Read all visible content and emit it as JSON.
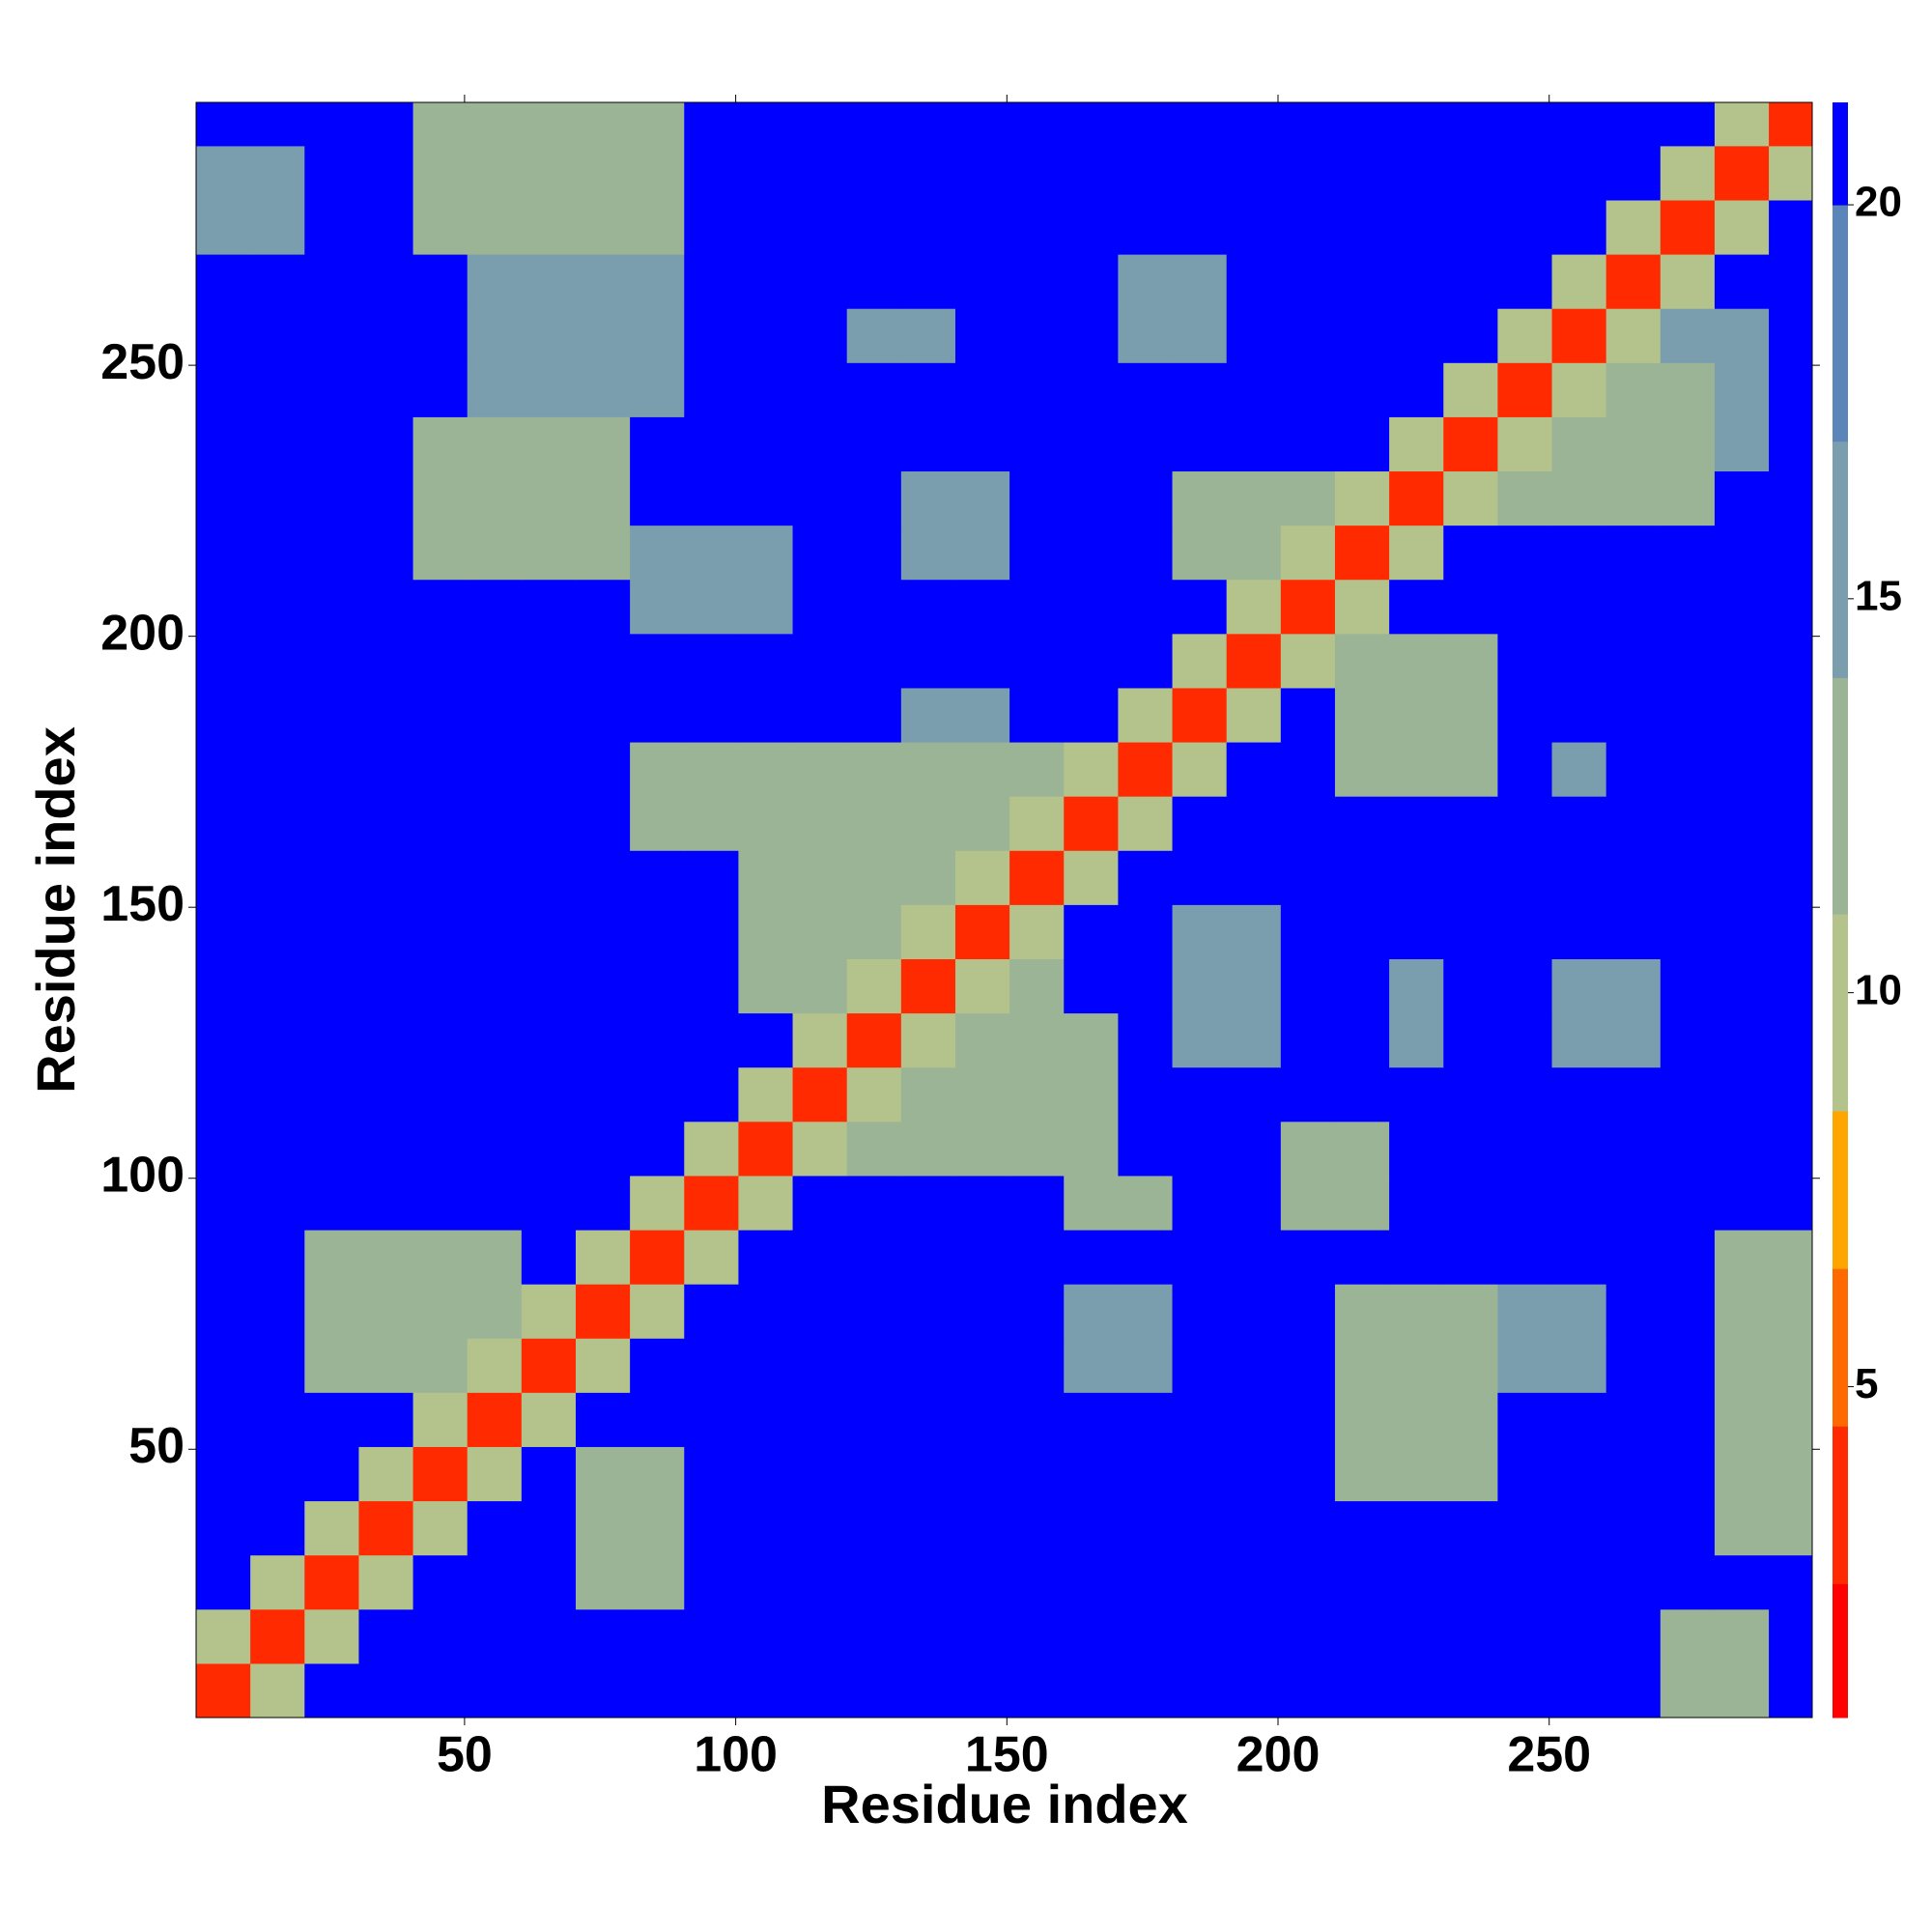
{
  "chart_data": {
    "type": "heatmap",
    "x_label": "Residue index",
    "y_label": "Residue index",
    "x_bins": [
      0.5,
      10.5,
      20.5,
      30.5,
      40.5,
      50.5,
      60.5,
      70.5,
      80.5,
      90.5,
      100.5,
      110.5,
      120.5,
      130.5,
      140.5,
      150.5,
      160.5,
      170.5,
      180.5,
      190.5,
      200.5,
      210.5,
      220.5,
      230.5,
      240.5,
      250.5,
      260.5,
      270.5,
      280.5,
      290.5,
      298.5
    ],
    "y_bins": [
      0.5,
      10.5,
      20.5,
      30.5,
      40.5,
      50.5,
      60.5,
      70.5,
      80.5,
      90.5,
      100.5,
      110.5,
      120.5,
      130.5,
      140.5,
      150.5,
      160.5,
      170.5,
      180.5,
      190.5,
      200.5,
      210.5,
      220.5,
      230.5,
      240.5,
      250.5,
      260.5,
      270.5,
      280.5,
      290.5,
      298.5
    ],
    "xlim": [
      0.5,
      298.5
    ],
    "ylim": [
      0.5,
      298.5
    ],
    "xticks": [
      50,
      100,
      150,
      200,
      250
    ],
    "yticks": [
      50,
      100,
      150,
      200,
      250
    ],
    "clim": [
      0.8,
      21.3
    ],
    "cticks": [
      5,
      10,
      15,
      20
    ],
    "colormap": [
      {
        "value": 2.5,
        "color": "#ff0000"
      },
      {
        "value": 4.5,
        "color": "#ff2a00"
      },
      {
        "value": 6.5,
        "color": "#ff6a00"
      },
      {
        "value": 8.5,
        "color": "#ffa500"
      },
      {
        "value": 11,
        "color": "#b4c38c"
      },
      {
        "value": 14,
        "color": "#9cb496"
      },
      {
        "value": 17,
        "color": "#7a9eae"
      },
      {
        "value": 20,
        "color": "#5b84b8"
      },
      {
        "value": 21.3,
        "color": "#0000ff"
      }
    ],
    "z": [
      [
        3,
        11,
        21,
        21,
        21,
        21,
        21,
        21,
        21,
        21,
        21,
        21,
        21,
        21,
        21,
        21,
        21,
        21,
        21,
        21,
        21,
        21,
        21,
        21,
        21,
        21,
        21,
        14,
        14,
        21
      ],
      [
        11,
        3,
        11,
        21,
        21,
        21,
        21,
        21,
        21,
        21,
        21,
        21,
        21,
        21,
        21,
        21,
        21,
        21,
        21,
        21,
        21,
        21,
        21,
        21,
        21,
        21,
        21,
        14,
        14,
        21
      ],
      [
        21,
        11,
        3,
        11,
        21,
        21,
        21,
        14,
        14,
        21,
        21,
        21,
        21,
        21,
        21,
        21,
        21,
        21,
        21,
        21,
        21,
        21,
        21,
        21,
        21,
        21,
        21,
        21,
        21,
        21
      ],
      [
        21,
        21,
        11,
        3,
        11,
        21,
        21,
        14,
        14,
        21,
        21,
        21,
        21,
        21,
        21,
        21,
        21,
        21,
        21,
        21,
        21,
        21,
        21,
        21,
        21,
        21,
        21,
        21,
        14,
        14
      ],
      [
        21,
        21,
        21,
        11,
        3,
        11,
        21,
        14,
        14,
        21,
        21,
        21,
        21,
        21,
        21,
        21,
        21,
        21,
        21,
        21,
        21,
        14,
        14,
        14,
        21,
        21,
        21,
        21,
        14,
        14
      ],
      [
        21,
        21,
        21,
        21,
        11,
        3,
        11,
        21,
        21,
        21,
        21,
        21,
        21,
        21,
        21,
        21,
        21,
        21,
        21,
        21,
        21,
        14,
        14,
        14,
        21,
        21,
        21,
        21,
        14,
        14
      ],
      [
        21,
        21,
        14,
        14,
        14,
        11,
        3,
        11,
        21,
        21,
        21,
        21,
        21,
        21,
        21,
        21,
        17,
        17,
        21,
        21,
        21,
        14,
        14,
        14,
        15,
        15,
        21,
        21,
        14,
        14
      ],
      [
        21,
        21,
        14,
        14,
        14,
        14,
        11,
        3,
        11,
        21,
        21,
        21,
        21,
        21,
        21,
        21,
        17,
        17,
        21,
        21,
        21,
        14,
        14,
        14,
        15,
        15,
        21,
        21,
        14,
        14
      ],
      [
        21,
        21,
        14,
        14,
        14,
        14,
        21,
        11,
        3,
        11,
        21,
        21,
        21,
        21,
        21,
        21,
        21,
        21,
        21,
        21,
        21,
        21,
        21,
        21,
        21,
        21,
        21,
        21,
        14,
        14
      ],
      [
        21,
        21,
        21,
        21,
        21,
        21,
        21,
        21,
        11,
        3,
        11,
        21,
        21,
        21,
        21,
        21,
        14,
        14,
        21,
        21,
        14,
        14,
        21,
        21,
        21,
        21,
        21,
        21,
        21,
        21
      ],
      [
        21,
        21,
        21,
        21,
        21,
        21,
        21,
        21,
        21,
        11,
        3,
        11,
        14,
        14,
        14,
        14,
        14,
        21,
        21,
        21,
        14,
        14,
        21,
        21,
        21,
        21,
        21,
        21,
        21,
        21
      ],
      [
        21,
        21,
        21,
        21,
        21,
        21,
        21,
        21,
        21,
        21,
        11,
        3,
        11,
        14,
        14,
        14,
        14,
        21,
        21,
        21,
        21,
        21,
        21,
        21,
        21,
        21,
        21,
        21,
        21,
        21
      ],
      [
        21,
        21,
        21,
        21,
        21,
        21,
        21,
        21,
        21,
        21,
        21,
        11,
        3,
        11,
        14,
        14,
        14,
        21,
        16,
        16,
        21,
        21,
        17,
        21,
        21,
        16,
        16,
        21,
        21,
        21
      ],
      [
        21,
        21,
        21,
        21,
        21,
        21,
        21,
        21,
        21,
        21,
        14,
        14,
        11,
        3,
        11,
        14,
        21,
        21,
        16,
        16,
        21,
        21,
        17,
        21,
        21,
        16,
        16,
        21,
        21,
        21
      ],
      [
        21,
        21,
        21,
        21,
        21,
        21,
        21,
        21,
        21,
        21,
        14,
        14,
        14,
        11,
        3,
        11,
        21,
        21,
        16,
        16,
        21,
        21,
        21,
        21,
        21,
        21,
        21,
        21,
        21,
        21
      ],
      [
        21,
        21,
        21,
        21,
        21,
        21,
        21,
        21,
        21,
        21,
        14,
        14,
        14,
        14,
        11,
        3,
        11,
        21,
        21,
        21,
        21,
        21,
        21,
        21,
        21,
        21,
        21,
        21,
        21,
        21
      ],
      [
        21,
        21,
        21,
        21,
        21,
        21,
        21,
        21,
        14,
        14,
        14,
        14,
        14,
        14,
        14,
        11,
        3,
        11,
        21,
        21,
        21,
        21,
        21,
        21,
        21,
        21,
        21,
        21,
        21,
        21
      ],
      [
        21,
        21,
        21,
        21,
        21,
        21,
        21,
        21,
        14,
        14,
        14,
        14,
        14,
        14,
        14,
        14,
        11,
        3,
        11,
        21,
        21,
        14,
        14,
        14,
        21,
        15,
        21,
        21,
        21,
        21
      ],
      [
        21,
        21,
        21,
        21,
        21,
        21,
        21,
        21,
        21,
        21,
        21,
        21,
        21,
        17,
        17,
        21,
        21,
        11,
        3,
        11,
        21,
        14,
        14,
        14,
        21,
        21,
        21,
        21,
        21,
        21
      ],
      [
        21,
        21,
        21,
        21,
        21,
        21,
        21,
        21,
        21,
        21,
        21,
        21,
        21,
        21,
        21,
        21,
        21,
        21,
        11,
        3,
        11,
        14,
        14,
        14,
        21,
        21,
        21,
        21,
        21,
        21
      ],
      [
        21,
        21,
        21,
        21,
        21,
        21,
        21,
        21,
        15,
        15,
        15,
        21,
        21,
        21,
        21,
        21,
        21,
        21,
        21,
        11,
        3,
        11,
        21,
        21,
        21,
        21,
        21,
        21,
        21,
        21
      ],
      [
        21,
        21,
        21,
        21,
        14,
        14,
        14,
        14,
        15,
        15,
        15,
        21,
        21,
        17,
        17,
        21,
        21,
        21,
        14,
        14,
        11,
        3,
        11,
        21,
        21,
        21,
        21,
        21,
        21,
        21
      ],
      [
        21,
        21,
        21,
        21,
        14,
        14,
        14,
        14,
        21,
        21,
        21,
        21,
        21,
        17,
        17,
        21,
        21,
        21,
        14,
        14,
        14,
        11,
        3,
        11,
        14,
        14,
        14,
        14,
        21,
        21
      ],
      [
        21,
        21,
        21,
        21,
        14,
        14,
        14,
        14,
        21,
        21,
        21,
        21,
        21,
        21,
        21,
        21,
        21,
        21,
        21,
        21,
        21,
        21,
        11,
        3,
        11,
        14,
        14,
        14,
        15,
        21
      ],
      [
        21,
        21,
        21,
        21,
        21,
        15,
        15,
        15,
        15,
        21,
        21,
        21,
        21,
        21,
        21,
        21,
        21,
        21,
        21,
        21,
        21,
        21,
        21,
        11,
        3,
        11,
        14,
        14,
        15,
        21
      ],
      [
        21,
        21,
        21,
        21,
        21,
        15,
        15,
        15,
        15,
        21,
        21,
        21,
        17,
        17,
        21,
        21,
        21,
        16,
        16,
        21,
        21,
        21,
        21,
        21,
        11,
        3,
        11,
        15,
        15,
        21
      ],
      [
        21,
        21,
        21,
        21,
        21,
        15,
        15,
        15,
        15,
        21,
        21,
        21,
        21,
        21,
        21,
        21,
        21,
        16,
        16,
        21,
        21,
        21,
        21,
        21,
        21,
        11,
        3,
        11,
        21,
        21
      ],
      [
        15,
        15,
        21,
        21,
        14,
        14,
        14,
        14,
        14,
        21,
        21,
        21,
        21,
        21,
        21,
        21,
        21,
        21,
        21,
        21,
        21,
        21,
        21,
        21,
        21,
        21,
        11,
        3,
        11,
        21
      ],
      [
        15,
        15,
        21,
        21,
        14,
        14,
        14,
        14,
        14,
        21,
        21,
        21,
        21,
        21,
        21,
        21,
        21,
        21,
        21,
        21,
        21,
        21,
        21,
        21,
        21,
        21,
        21,
        11,
        3,
        11
      ],
      [
        21,
        21,
        21,
        21,
        14,
        14,
        14,
        14,
        14,
        21,
        21,
        21,
        21,
        21,
        21,
        21,
        21,
        21,
        21,
        21,
        21,
        21,
        21,
        21,
        21,
        21,
        21,
        21,
        11,
        3
      ]
    ]
  }
}
